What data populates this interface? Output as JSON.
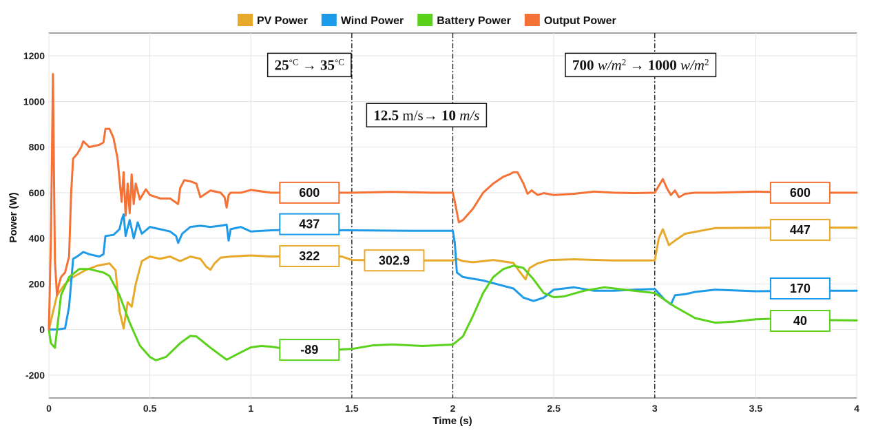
{
  "chart_data": {
    "type": "line",
    "xlabel": "Time (s)",
    "ylabel": "Power (W)",
    "xlim": [
      0,
      4
    ],
    "ylim": [
      -300,
      1300
    ],
    "x_ticks": [
      0,
      0.5,
      1,
      1.5,
      2,
      2.5,
      3,
      3.5,
      4
    ],
    "x_tick_labels": [
      "0",
      "0.5",
      "1",
      "1.5",
      "2",
      "2.5",
      "3",
      "3.5",
      "4"
    ],
    "y_ticks": [
      -200,
      0,
      200,
      400,
      600,
      800,
      1000,
      1200
    ],
    "y_tick_labels": [
      "-200",
      "0",
      "200",
      "400",
      "600",
      "800",
      "1000",
      "1200"
    ],
    "grid": true,
    "legend_position": "top",
    "vertical_markers": [
      1.5,
      2,
      3
    ],
    "series": [
      {
        "name": "PV Power",
        "color": "#E6A92A",
        "points": [
          [
            0,
            0
          ],
          [
            0.04,
            150
          ],
          [
            0.08,
            200
          ],
          [
            0.12,
            230
          ],
          [
            0.18,
            260
          ],
          [
            0.24,
            280
          ],
          [
            0.3,
            290
          ],
          [
            0.33,
            260
          ],
          [
            0.35,
            80
          ],
          [
            0.37,
            5
          ],
          [
            0.39,
            120
          ],
          [
            0.41,
            100
          ],
          [
            0.43,
            200
          ],
          [
            0.46,
            300
          ],
          [
            0.5,
            320
          ],
          [
            0.55,
            310
          ],
          [
            0.6,
            320
          ],
          [
            0.65,
            300
          ],
          [
            0.7,
            320
          ],
          [
            0.75,
            310
          ],
          [
            0.78,
            275
          ],
          [
            0.8,
            262
          ],
          [
            0.82,
            290
          ],
          [
            0.85,
            315
          ],
          [
            0.9,
            320
          ],
          [
            1.0,
            325
          ],
          [
            1.1,
            320
          ],
          [
            1.2,
            322
          ],
          [
            1.45,
            320
          ],
          [
            1.5,
            305
          ],
          [
            1.8,
            303
          ],
          [
            2.0,
            303
          ],
          [
            2.02,
            310
          ],
          [
            2.05,
            300
          ],
          [
            2.1,
            295
          ],
          [
            2.2,
            305
          ],
          [
            2.3,
            292
          ],
          [
            2.33,
            255
          ],
          [
            2.36,
            220
          ],
          [
            2.38,
            270
          ],
          [
            2.42,
            290
          ],
          [
            2.48,
            305
          ],
          [
            2.6,
            308
          ],
          [
            2.8,
            303
          ],
          [
            3.0,
            303
          ],
          [
            3.02,
            400
          ],
          [
            3.04,
            440
          ],
          [
            3.07,
            370
          ],
          [
            3.1,
            390
          ],
          [
            3.15,
            420
          ],
          [
            3.3,
            445
          ],
          [
            3.6,
            447
          ],
          [
            3.8,
            447
          ],
          [
            4.0,
            447
          ]
        ]
      },
      {
        "name": "Wind Power",
        "color": "#1E9BE8",
        "points": [
          [
            0,
            0
          ],
          [
            0.04,
            0
          ],
          [
            0.08,
            5
          ],
          [
            0.1,
            100
          ],
          [
            0.12,
            310
          ],
          [
            0.14,
            320
          ],
          [
            0.17,
            340
          ],
          [
            0.2,
            330
          ],
          [
            0.25,
            320
          ],
          [
            0.27,
            330
          ],
          [
            0.28,
            410
          ],
          [
            0.32,
            415
          ],
          [
            0.35,
            440
          ],
          [
            0.36,
            480
          ],
          [
            0.37,
            505
          ],
          [
            0.38,
            410
          ],
          [
            0.4,
            480
          ],
          [
            0.42,
            400
          ],
          [
            0.44,
            470
          ],
          [
            0.46,
            420
          ],
          [
            0.5,
            450
          ],
          [
            0.55,
            440
          ],
          [
            0.6,
            430
          ],
          [
            0.63,
            410
          ],
          [
            0.64,
            380
          ],
          [
            0.66,
            420
          ],
          [
            0.7,
            450
          ],
          [
            0.75,
            455
          ],
          [
            0.8,
            450
          ],
          [
            0.85,
            455
          ],
          [
            0.88,
            460
          ],
          [
            0.89,
            390
          ],
          [
            0.9,
            440
          ],
          [
            0.95,
            450
          ],
          [
            1.0,
            430
          ],
          [
            1.1,
            435
          ],
          [
            1.2,
            437
          ],
          [
            1.5,
            435
          ],
          [
            1.8,
            433
          ],
          [
            2.0,
            433
          ],
          [
            2.01,
            380
          ],
          [
            2.02,
            250
          ],
          [
            2.05,
            230
          ],
          [
            2.15,
            215
          ],
          [
            2.3,
            180
          ],
          [
            2.35,
            140
          ],
          [
            2.4,
            125
          ],
          [
            2.45,
            140
          ],
          [
            2.5,
            175
          ],
          [
            2.6,
            185
          ],
          [
            2.7,
            170
          ],
          [
            2.8,
            170
          ],
          [
            2.9,
            175
          ],
          [
            3.0,
            178
          ],
          [
            3.05,
            130
          ],
          [
            3.08,
            110
          ],
          [
            3.1,
            150
          ],
          [
            3.15,
            155
          ],
          [
            3.2,
            165
          ],
          [
            3.3,
            175
          ],
          [
            3.5,
            168
          ],
          [
            3.7,
            170
          ],
          [
            4.0,
            170
          ]
        ]
      },
      {
        "name": "Battery Power",
        "color": "#5AD11A",
        "points": [
          [
            0,
            0
          ],
          [
            0.01,
            -60
          ],
          [
            0.03,
            -80
          ],
          [
            0.06,
            150
          ],
          [
            0.1,
            230
          ],
          [
            0.15,
            265
          ],
          [
            0.2,
            265
          ],
          [
            0.27,
            250
          ],
          [
            0.3,
            235
          ],
          [
            0.35,
            150
          ],
          [
            0.4,
            30
          ],
          [
            0.45,
            -70
          ],
          [
            0.5,
            -120
          ],
          [
            0.53,
            -135
          ],
          [
            0.58,
            -120
          ],
          [
            0.65,
            -60
          ],
          [
            0.7,
            -28
          ],
          [
            0.73,
            -30
          ],
          [
            0.8,
            -80
          ],
          [
            0.88,
            -132
          ],
          [
            0.95,
            -100
          ],
          [
            1.0,
            -78
          ],
          [
            1.05,
            -72
          ],
          [
            1.1,
            -75
          ],
          [
            1.2,
            -89
          ],
          [
            1.4,
            -90
          ],
          [
            1.5,
            -85
          ],
          [
            1.6,
            -70
          ],
          [
            1.7,
            -65
          ],
          [
            1.85,
            -72
          ],
          [
            2.0,
            -66
          ],
          [
            2.05,
            -30
          ],
          [
            2.1,
            60
          ],
          [
            2.15,
            160
          ],
          [
            2.2,
            230
          ],
          [
            2.25,
            265
          ],
          [
            2.3,
            280
          ],
          [
            2.35,
            270
          ],
          [
            2.4,
            220
          ],
          [
            2.45,
            160
          ],
          [
            2.5,
            142
          ],
          [
            2.55,
            145
          ],
          [
            2.65,
            170
          ],
          [
            2.75,
            185
          ],
          [
            2.85,
            175
          ],
          [
            2.95,
            165
          ],
          [
            3.0,
            160
          ],
          [
            3.05,
            130
          ],
          [
            3.1,
            100
          ],
          [
            3.2,
            50
          ],
          [
            3.3,
            30
          ],
          [
            3.4,
            35
          ],
          [
            3.5,
            45
          ],
          [
            3.6,
            48
          ],
          [
            3.7,
            40
          ],
          [
            3.8,
            42
          ],
          [
            4.0,
            40
          ]
        ]
      },
      {
        "name": "Output Power",
        "color": "#F57236",
        "points": [
          [
            0,
            0
          ],
          [
            0.01,
            400
          ],
          [
            0.02,
            1120
          ],
          [
            0.025,
            700
          ],
          [
            0.03,
            300
          ],
          [
            0.04,
            150
          ],
          [
            0.05,
            200
          ],
          [
            0.06,
            230
          ],
          [
            0.08,
            250
          ],
          [
            0.1,
            320
          ],
          [
            0.11,
            600
          ],
          [
            0.12,
            750
          ],
          [
            0.14,
            770
          ],
          [
            0.16,
            800
          ],
          [
            0.17,
            825
          ],
          [
            0.2,
            800
          ],
          [
            0.25,
            810
          ],
          [
            0.27,
            820
          ],
          [
            0.28,
            880
          ],
          [
            0.3,
            880
          ],
          [
            0.32,
            840
          ],
          [
            0.34,
            750
          ],
          [
            0.36,
            560
          ],
          [
            0.37,
            690
          ],
          [
            0.38,
            500
          ],
          [
            0.39,
            640
          ],
          [
            0.4,
            510
          ],
          [
            0.41,
            680
          ],
          [
            0.42,
            550
          ],
          [
            0.43,
            640
          ],
          [
            0.45,
            570
          ],
          [
            0.48,
            615
          ],
          [
            0.5,
            590
          ],
          [
            0.55,
            575
          ],
          [
            0.6,
            575
          ],
          [
            0.64,
            550
          ],
          [
            0.65,
            620
          ],
          [
            0.67,
            655
          ],
          [
            0.7,
            650
          ],
          [
            0.73,
            640
          ],
          [
            0.75,
            580
          ],
          [
            0.8,
            610
          ],
          [
            0.85,
            600
          ],
          [
            0.87,
            580
          ],
          [
            0.88,
            535
          ],
          [
            0.89,
            590
          ],
          [
            0.9,
            600
          ],
          [
            0.95,
            600
          ],
          [
            1.0,
            612
          ],
          [
            1.1,
            600
          ],
          [
            1.2,
            600
          ],
          [
            1.5,
            600
          ],
          [
            1.7,
            604
          ],
          [
            1.9,
            600
          ],
          [
            2.0,
            600
          ],
          [
            2.01,
            560
          ],
          [
            2.03,
            470
          ],
          [
            2.05,
            480
          ],
          [
            2.1,
            530
          ],
          [
            2.15,
            600
          ],
          [
            2.2,
            640
          ],
          [
            2.25,
            670
          ],
          [
            2.28,
            680
          ],
          [
            2.3,
            690
          ],
          [
            2.32,
            690
          ],
          [
            2.35,
            640
          ],
          [
            2.37,
            595
          ],
          [
            2.39,
            610
          ],
          [
            2.42,
            590
          ],
          [
            2.45,
            598
          ],
          [
            2.5,
            590
          ],
          [
            2.6,
            595
          ],
          [
            2.7,
            605
          ],
          [
            2.8,
            600
          ],
          [
            2.9,
            598
          ],
          [
            3.0,
            600
          ],
          [
            3.02,
            630
          ],
          [
            3.04,
            660
          ],
          [
            3.06,
            620
          ],
          [
            3.08,
            590
          ],
          [
            3.1,
            610
          ],
          [
            3.12,
            580
          ],
          [
            3.15,
            595
          ],
          [
            3.2,
            600
          ],
          [
            3.3,
            600
          ],
          [
            3.5,
            605
          ],
          [
            3.7,
            600
          ],
          [
            4.0,
            600
          ]
        ]
      }
    ],
    "value_labels": [
      {
        "text": "600",
        "x": 1.29,
        "y": 600,
        "series": "Output Power"
      },
      {
        "text": "437",
        "x": 1.29,
        "y": 462,
        "series": "Wind Power"
      },
      {
        "text": "322",
        "x": 1.29,
        "y": 322,
        "series": "PV Power"
      },
      {
        "text": "302.9",
        "x": 1.71,
        "y": 303,
        "series": "PV Power"
      },
      {
        "text": "-89",
        "x": 1.29,
        "y": -89,
        "series": "Battery Power"
      },
      {
        "text": "600",
        "x": 3.72,
        "y": 600,
        "series": "Output Power"
      },
      {
        "text": "447",
        "x": 3.72,
        "y": 437,
        "series": "PV Power"
      },
      {
        "text": "170",
        "x": 3.72,
        "y": 180,
        "series": "Wind Power"
      },
      {
        "text": "40",
        "x": 3.72,
        "y": 38,
        "series": "Battery Power"
      }
    ],
    "annotations": [
      {
        "id": "temp",
        "x_center": 1.29,
        "y_center": 1160,
        "parts": [
          {
            "t": "25",
            "b": 1
          },
          {
            "t": "°C",
            "b": 0,
            "sup": 1
          },
          {
            "t": " → ",
            "b": 0
          },
          {
            "t": "35",
            "b": 1
          },
          {
            "t": "°C",
            "b": 0,
            "sup": 1
          }
        ]
      },
      {
        "id": "wind",
        "x_center": 1.87,
        "y_center": 940,
        "parts": [
          {
            "t": "12.5",
            "b": 1
          },
          {
            "t": " m/s→ ",
            "b": 0
          },
          {
            "t": "10",
            "b": 1
          },
          {
            "t": " m/s",
            "b": 0,
            "i": 1
          }
        ]
      },
      {
        "id": "irr",
        "x_center": 2.93,
        "y_center": 1160,
        "parts": [
          {
            "t": "700",
            "b": 1
          },
          {
            "t": " w/m",
            "b": 0,
            "i": 1
          },
          {
            "t": "2",
            "b": 0,
            "sup": 1
          },
          {
            "t": " → ",
            "b": 0
          },
          {
            "t": "1000",
            "b": 1
          },
          {
            "t": " w/m",
            "b": 0,
            "i": 1
          },
          {
            "t": "2",
            "b": 0,
            "sup": 1
          }
        ]
      }
    ]
  }
}
